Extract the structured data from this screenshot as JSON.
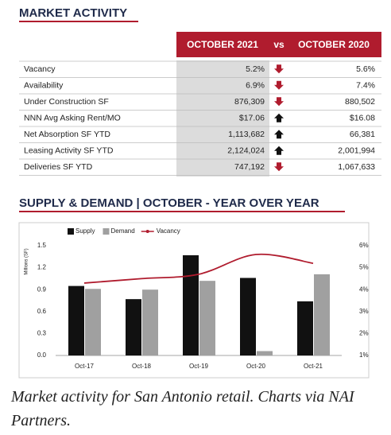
{
  "header": {
    "title": "MARKET ACTIVITY"
  },
  "table": {
    "columns": [
      "OCTOBER 2021",
      "vs",
      "OCTOBER 2020"
    ],
    "rows": [
      {
        "label": "Vacancy",
        "current": "5.2%",
        "trend": "down",
        "previous": "5.6%"
      },
      {
        "label": "Availability",
        "current": "6.9%",
        "trend": "down",
        "previous": "7.4%"
      },
      {
        "label": "Under Construction SF",
        "current": "876,309",
        "trend": "down",
        "previous": "880,502"
      },
      {
        "label": "NNN Avg Asking Rent/MO",
        "current": "$17.06",
        "trend": "up",
        "previous": "$16.08"
      },
      {
        "label": "Net Absorption SF YTD",
        "current": "1,113,682",
        "trend": "up",
        "previous": "66,381"
      },
      {
        "label": "Leasing Activity SF YTD",
        "current": "2,124,024",
        "trend": "up",
        "previous": "2,001,994"
      },
      {
        "label": "Deliveries SF YTD",
        "current": "747,192",
        "trend": "down",
        "previous": "1,067,633"
      }
    ]
  },
  "chart_data": {
    "type": "bar",
    "title": "SUPPLY & DEMAND | OCTOBER - YEAR OVER YEAR",
    "y_label": "Millions (SF)",
    "categories": [
      "Oct-17",
      "Oct-18",
      "Oct-19",
      "Oct-20",
      "Oct-21"
    ],
    "series": [
      {
        "name": "Supply",
        "color": "#111111",
        "values": [
          0.95,
          0.77,
          1.37,
          1.06,
          0.74
        ]
      },
      {
        "name": "Demand",
        "color": "#a0a0a0",
        "values": [
          0.91,
          0.9,
          1.02,
          0.06,
          1.11
        ]
      },
      {
        "name": "Vacancy",
        "color": "#b01c2e",
        "type": "line",
        "axis": "y2",
        "values": [
          4.3,
          4.5,
          4.7,
          5.6,
          5.2
        ]
      }
    ],
    "ylim": [
      0,
      1.5
    ],
    "yticks": [
      {
        "value": 0,
        "label": "0.0"
      },
      0.3,
      0.6,
      0.9,
      1.2,
      1.5
    ],
    "y2lim": [
      1,
      6
    ],
    "y2ticks": [
      {
        "value": 1,
        "label": "1%"
      },
      {
        "value": 2,
        "label": "2%"
      },
      {
        "value": 3,
        "label": "3%"
      },
      {
        "value": 4,
        "label": "4%"
      },
      {
        "value": 5,
        "label": "5%"
      },
      {
        "value": 6,
        "label": "6%"
      }
    ],
    "grid": false,
    "legend": "top"
  },
  "caption": "Market activity for San Antonio retail. Charts via NAI Partners."
}
